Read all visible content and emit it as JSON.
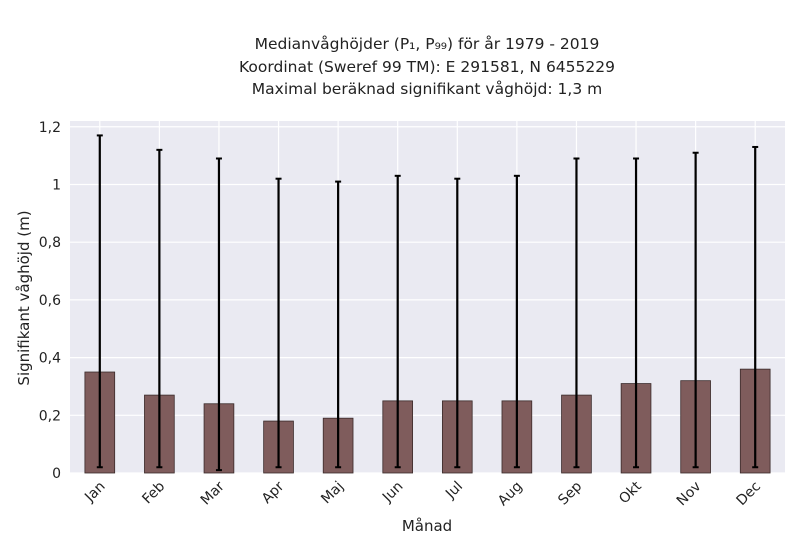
{
  "chart_data": {
    "type": "bar",
    "title_lines": [
      "Medianvåghöjder (P₁, P₉₉) för år 1979 - 2019",
      "Koordinat (Sweref 99 TM): E 291581, N 6455229",
      "Maximal beräknad signifikant våghöjd: 1,3 m"
    ],
    "xlabel": "Månad",
    "ylabel": "Signifikant våghöjd (m)",
    "categories": [
      "Jan",
      "Feb",
      "Mar",
      "Apr",
      "Maj",
      "Jun",
      "Jul",
      "Aug",
      "Sep",
      "Okt",
      "Nov",
      "Dec"
    ],
    "values": [
      0.35,
      0.27,
      0.24,
      0.18,
      0.19,
      0.25,
      0.25,
      0.25,
      0.27,
      0.31,
      0.32,
      0.36
    ],
    "p1": [
      0.02,
      0.02,
      0.01,
      0.02,
      0.02,
      0.02,
      0.02,
      0.02,
      0.02,
      0.02,
      0.02,
      0.02
    ],
    "p99": [
      1.17,
      1.12,
      1.09,
      1.02,
      1.01,
      1.03,
      1.02,
      1.03,
      1.09,
      1.09,
      1.11,
      1.13
    ],
    "ylim": [
      0,
      1.22
    ],
    "yticks": [
      0,
      0.2,
      0.4,
      0.6,
      0.8,
      1,
      1.2
    ],
    "ytick_labels": [
      "0",
      "0,2",
      "0,4",
      "0,6",
      "0,8",
      "1",
      "1,2"
    ],
    "grid": true,
    "colors": {
      "bar": "#7f5c5c",
      "bar_edge": "#3a2a2a",
      "background": "#eaeaf2",
      "grid": "#ffffff",
      "errorbar": "#000000"
    }
  }
}
